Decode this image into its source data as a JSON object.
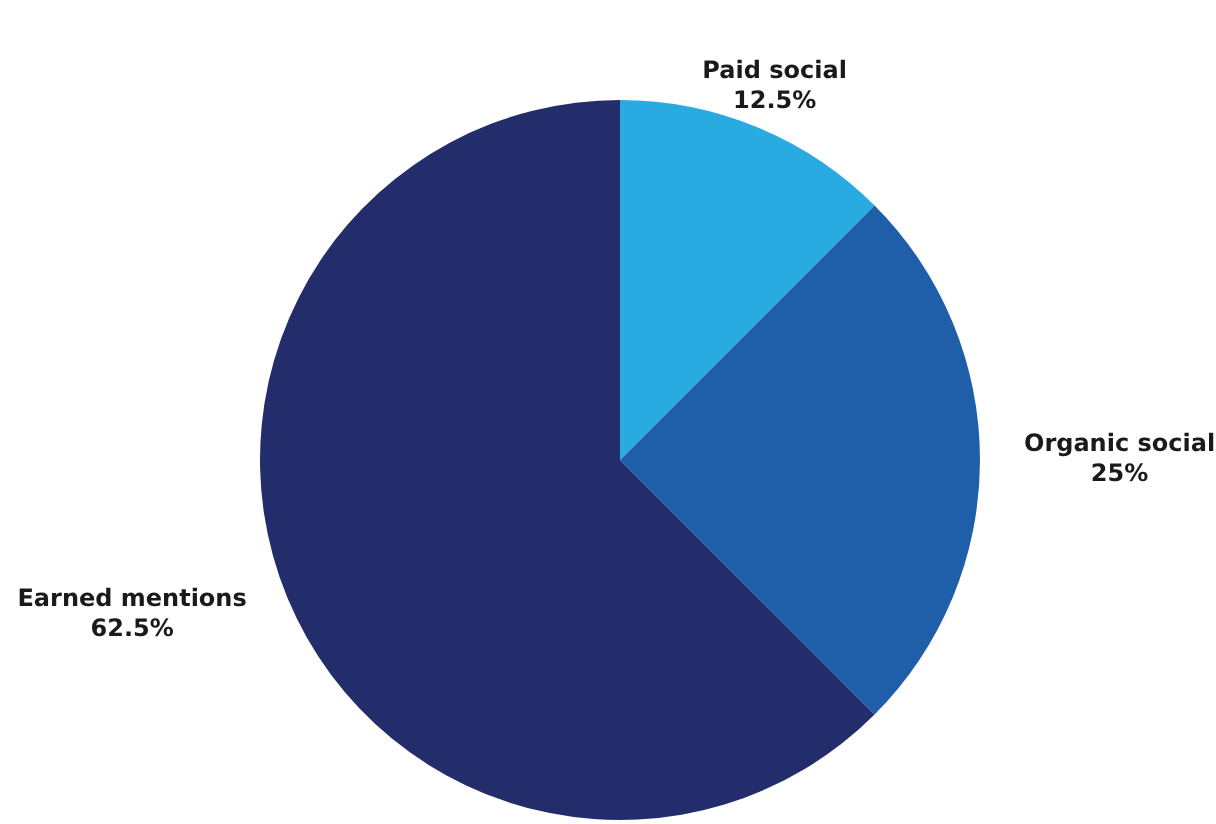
{
  "chart_data": {
    "type": "pie",
    "categories": [
      "Paid social",
      "Organic social",
      "Earned mentions"
    ],
    "values": [
      12.5,
      25,
      62.5
    ],
    "colors": [
      "#29abe2",
      "#1f5ea8",
      "#232d6b"
    ],
    "value_labels": [
      "12.5%",
      "25%",
      "62.5%"
    ],
    "legend": false
  }
}
